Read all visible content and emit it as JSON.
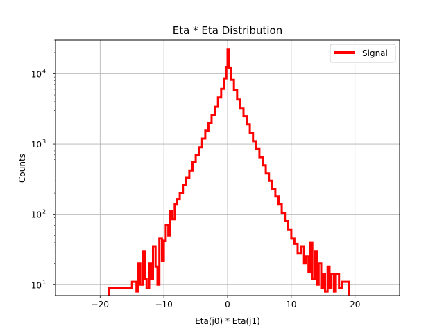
{
  "chart_data": {
    "type": "line",
    "title": "Eta * Eta Distribution",
    "xlabel": "Eta(j0) * Eta(j1)",
    "ylabel": "Counts",
    "xlim": [
      -27,
      27
    ],
    "ylim": [
      7,
      30000
    ],
    "yscale": "log",
    "grid": true,
    "legend": "top-right",
    "xticks": [
      -20,
      -10,
      0,
      10,
      20
    ],
    "xtick_labels": [
      "−20",
      "−10",
      "0",
      "10",
      "20"
    ],
    "yticks": [
      10,
      100,
      1000,
      10000
    ],
    "ytick_labels": [
      "10",
      "10",
      "10",
      "10"
    ],
    "ytick_exponents": [
      "1",
      "2",
      "3",
      "4"
    ],
    "series": [
      {
        "name": "Signal",
        "color": "#ff0000",
        "x": [
          -18.5,
          -17,
          -16,
          -15,
          -14.3,
          -14,
          -13.7,
          -13.3,
          -13,
          -12.7,
          -12.3,
          -12,
          -11.7,
          -11.3,
          -11,
          -10.7,
          -10.3,
          -10,
          -9.7,
          -9.3,
          -9,
          -8.7,
          -8.3,
          -8,
          -7.5,
          -7,
          -6.5,
          -6,
          -5.5,
          -5,
          -4.5,
          -4,
          -3.5,
          -3,
          -2.5,
          -2,
          -1.5,
          -1,
          -0.5,
          -0.2,
          0,
          0.2,
          0.5,
          1,
          1.5,
          2,
          2.5,
          3,
          3.5,
          4,
          4.5,
          5,
          5.5,
          6,
          6.5,
          7,
          7.5,
          8,
          8.5,
          9,
          9.5,
          10,
          10.5,
          11,
          11.5,
          12,
          12.3,
          12.7,
          13,
          13.3,
          13.7,
          14,
          14.3,
          14.7,
          15,
          15.3,
          15.7,
          16,
          16.3,
          16.7,
          17,
          17.5,
          18,
          19
        ],
        "values": [
          9,
          9,
          9,
          11,
          8,
          20,
          10,
          30,
          12,
          9,
          20,
          12,
          35,
          18,
          10,
          45,
          22,
          42,
          70,
          50,
          110,
          85,
          140,
          165,
          200,
          260,
          330,
          420,
          560,
          700,
          900,
          1200,
          1550,
          2000,
          2600,
          3400,
          4600,
          6100,
          8600,
          12500,
          22000,
          12000,
          8200,
          5800,
          4300,
          3200,
          2500,
          1900,
          1450,
          1100,
          850,
          650,
          500,
          380,
          300,
          230,
          180,
          140,
          105,
          80,
          60,
          45,
          38,
          28,
          35,
          20,
          25,
          15,
          40,
          12,
          30,
          10,
          20,
          9,
          14,
          8,
          18,
          9,
          14,
          8,
          14,
          9,
          11,
          9
        ]
      }
    ]
  }
}
